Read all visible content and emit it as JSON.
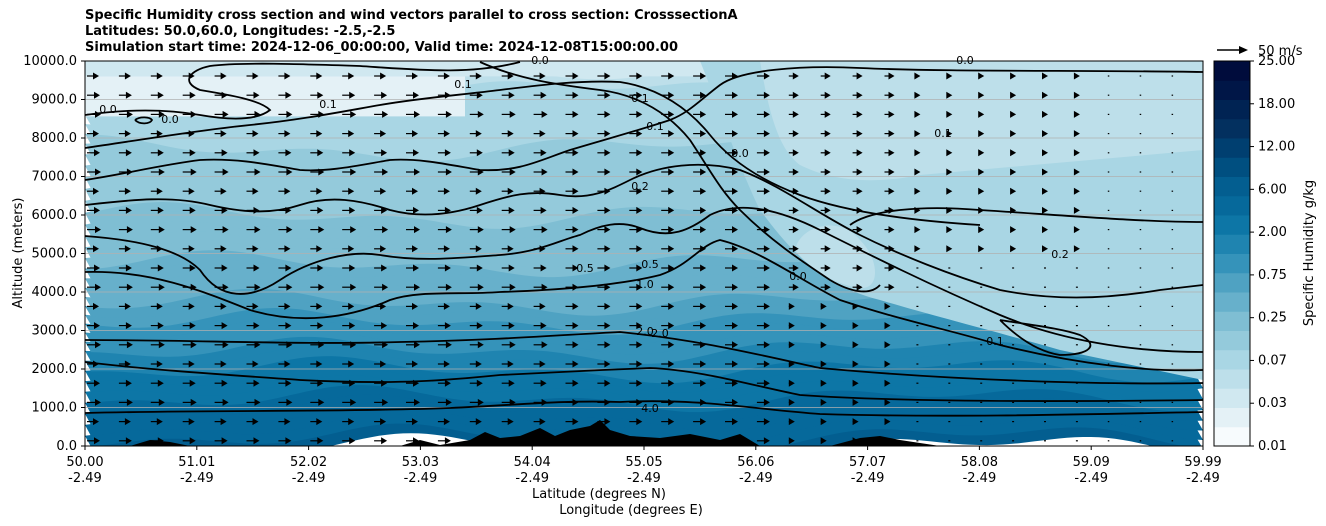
{
  "chart_data": {
    "type": "heatmap",
    "title_lines": [
      "Specific Humidity cross section and wind vectors parallel to cross section: CrosssectionA",
      "Latitudes: 50.0,60.0, Longitudes: -2.5,-2.5",
      "Simulation start time: 2024-12-06_00:00:00, Valid time: 2024-12-08T15:00:00.00"
    ],
    "xlabel_lines": [
      "Latitude (degrees N)",
      "Longitude (degrees E)"
    ],
    "ylabel": "Altitude (meters)",
    "x_ticks": [
      {
        "lat": "50.00",
        "lon": "-2.49"
      },
      {
        "lat": "51.01",
        "lon": "-2.49"
      },
      {
        "lat": "52.02",
        "lon": "-2.49"
      },
      {
        "lat": "53.03",
        "lon": "-2.49"
      },
      {
        "lat": "54.04",
        "lon": "-2.49"
      },
      {
        "lat": "55.05",
        "lon": "-2.49"
      },
      {
        "lat": "56.06",
        "lon": "-2.49"
      },
      {
        "lat": "57.07",
        "lon": "-2.49"
      },
      {
        "lat": "58.08",
        "lon": "-2.49"
      },
      {
        "lat": "59.09",
        "lon": "-2.49"
      },
      {
        "lat": "59.99",
        "lon": "-2.49"
      }
    ],
    "xlim": [
      50.0,
      59.99
    ],
    "y_ticks": [
      "0.0",
      "1000.0",
      "2000.0",
      "3000.0",
      "4000.0",
      "5000.0",
      "6000.0",
      "7000.0",
      "8000.0",
      "9000.0",
      "10000.0"
    ],
    "ylim": [
      0,
      10000
    ],
    "grid": "horizontal",
    "colorbar": {
      "label": "Specific Humidity g/kg",
      "ticks": [
        "0.01",
        "0.03",
        "0.07",
        "0.25",
        "0.75",
        "2.00",
        "6.00",
        "12.00",
        "18.00",
        "25.00"
      ],
      "colors": [
        "#f7fbfd",
        "#e4f1f6",
        "#d0e8f0",
        "#bddfea",
        "#a9d6e4",
        "#94cadb",
        "#7fbed3",
        "#67b0cb",
        "#4fa2c2",
        "#3593ba",
        "#1f84b0",
        "#0d76a6",
        "#06699b",
        "#035e90",
        "#004f80",
        "#003f70",
        "#03305f",
        "#002353",
        "#001647",
        "#000c3c"
      ]
    },
    "quiver_key": {
      "label": "50 m/s"
    },
    "contour_labels": [
      "0.0",
      "0.1",
      "0.2",
      "0.5",
      "1.0",
      "2.0",
      "4.0"
    ],
    "humidity_profile_gkg": [
      {
        "altitude": 0,
        "value": 6.0
      },
      {
        "altitude": 1000,
        "value": 4.0
      },
      {
        "altitude": 2000,
        "value": 2.0
      },
      {
        "altitude": 3000,
        "value": 1.0
      },
      {
        "altitude": 4000,
        "value": 0.5
      },
      {
        "altitude": 5000,
        "value": 0.3
      },
      {
        "altitude": 6000,
        "value": 0.2
      },
      {
        "altitude": 7000,
        "value": 0.15
      },
      {
        "altitude": 8000,
        "value": 0.1
      },
      {
        "altitude": 9000,
        "value": 0.07
      },
      {
        "altitude": 10000,
        "value": 0.03
      }
    ]
  }
}
